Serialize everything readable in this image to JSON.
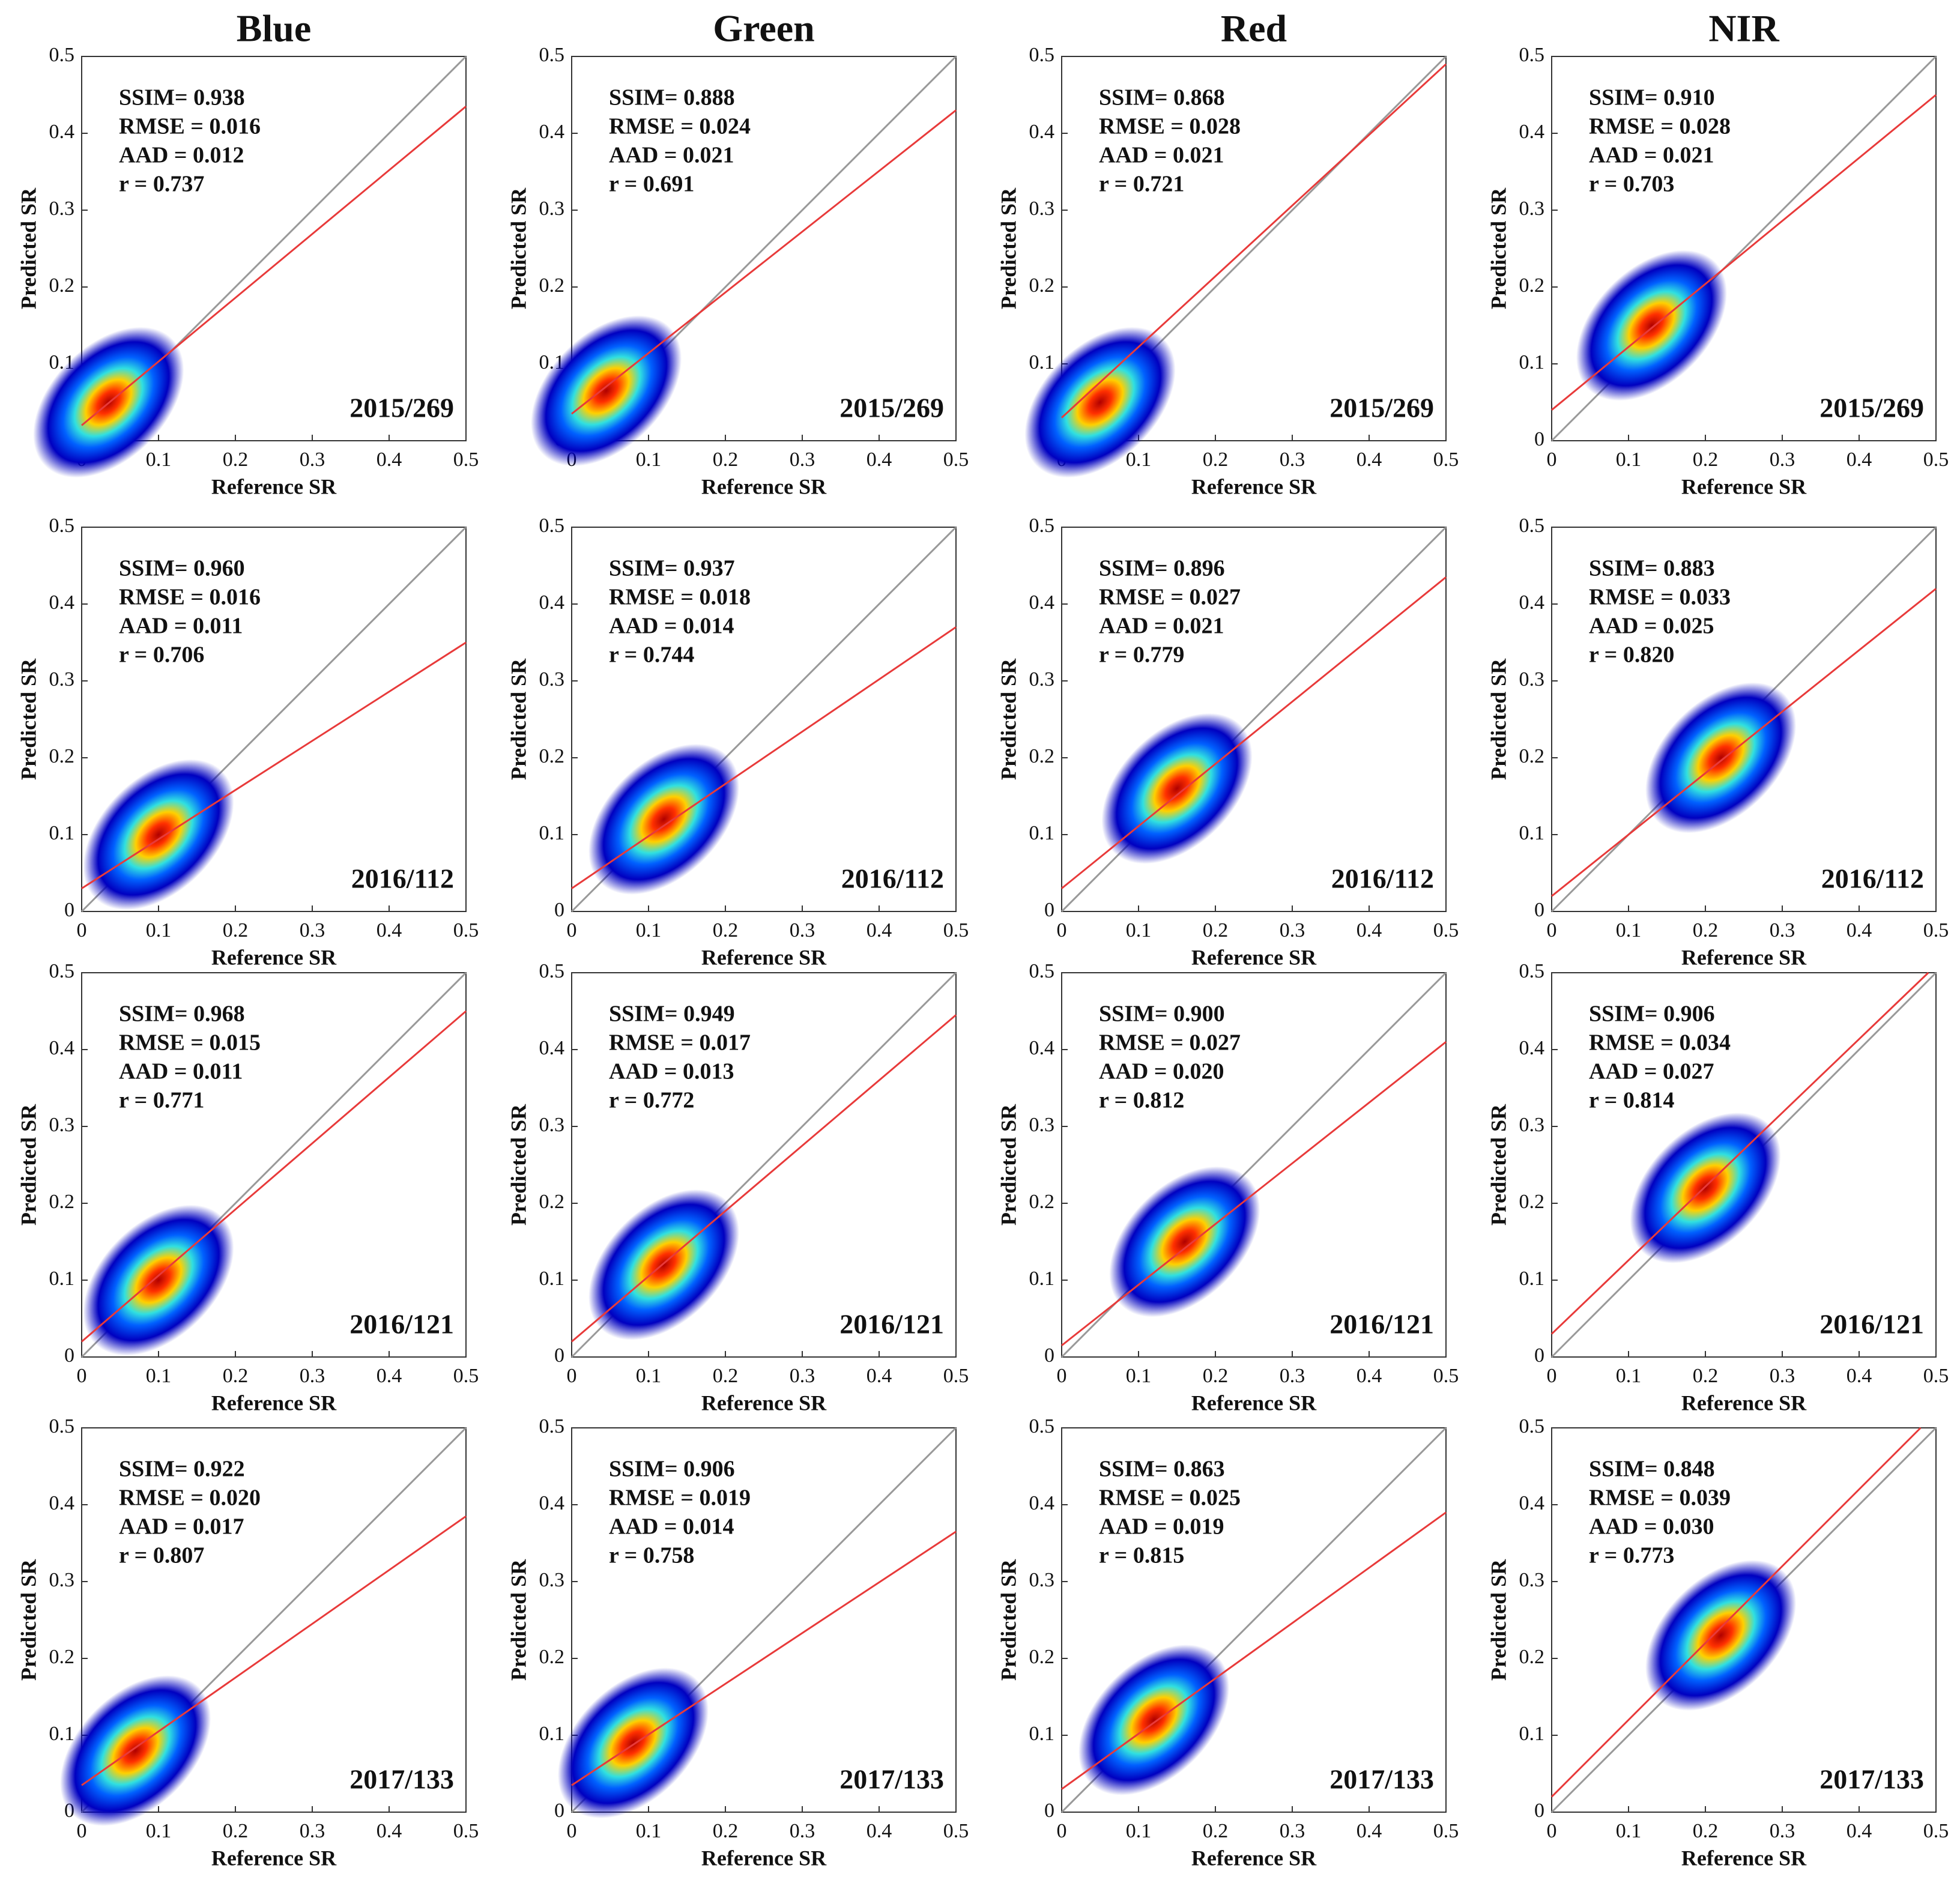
{
  "chart_data": [
    {
      "type": "scatter",
      "title": "Blue",
      "annotations": [
        "SSIM= 0.938",
        "RMSE = 0.016",
        "AAD = 0.012",
        "r =  0.737"
      ],
      "label": "2015/269",
      "xlabel": "Reference SR",
      "ylabel": "Predicted SR",
      "xlim": [
        0,
        0.5
      ],
      "ylim": [
        0,
        0.5
      ],
      "xticks": [
        0,
        0.1,
        0.2,
        0.3,
        0.4,
        0.5
      ],
      "yticks": [
        0,
        0.1,
        0.2,
        0.3,
        0.4,
        0.5
      ],
      "fit_line": {
        "color": "#e83a3a",
        "x": [
          0,
          0.5
        ],
        "y": [
          0.02,
          0.435
        ]
      },
      "peak": {
        "x": 0.035,
        "y": 0.05
      }
    },
    {
      "type": "scatter",
      "title": "Green",
      "annotations": [
        "SSIM= 0.888",
        "RMSE = 0.024",
        "AAD = 0.021",
        "r =  0.691"
      ],
      "label": "2015/269",
      "xlabel": "Reference SR",
      "ylabel": "Predicted SR",
      "xlim": [
        0,
        0.5
      ],
      "ylim": [
        0,
        0.5
      ],
      "xticks": [
        0,
        0.1,
        0.2,
        0.3,
        0.4,
        0.5
      ],
      "yticks": [
        0,
        0.1,
        0.2,
        0.3,
        0.4,
        0.5
      ],
      "fit_line": {
        "color": "#e83a3a",
        "x": [
          0,
          0.5
        ],
        "y": [
          0.035,
          0.43
        ]
      },
      "peak": {
        "x": 0.045,
        "y": 0.065
      }
    },
    {
      "type": "scatter",
      "title": "Red",
      "annotations": [
        "SSIM= 0.868",
        "RMSE = 0.028",
        "AAD = 0.021",
        "r =  0.721"
      ],
      "label": "2015/269",
      "xlabel": "Reference SR",
      "ylabel": "Predicted SR",
      "xlim": [
        0,
        0.5
      ],
      "ylim": [
        0,
        0.5
      ],
      "xticks": [
        0,
        0.1,
        0.2,
        0.3,
        0.4,
        0.5
      ],
      "yticks": [
        0,
        0.1,
        0.2,
        0.3,
        0.4,
        0.5
      ],
      "fit_line": {
        "color": "#e83a3a",
        "x": [
          0,
          0.5
        ],
        "y": [
          0.03,
          0.49
        ]
      },
      "peak": {
        "x": 0.05,
        "y": 0.05
      }
    },
    {
      "type": "scatter",
      "title": "NIR",
      "annotations": [
        "SSIM= 0.910",
        "RMSE = 0.028",
        "AAD = 0.021",
        "r =  0.703"
      ],
      "label": "2015/269",
      "xlabel": "Reference SR",
      "ylabel": "Predicted SR",
      "xlim": [
        0,
        0.5
      ],
      "ylim": [
        0,
        0.5
      ],
      "xticks": [
        0,
        0.1,
        0.2,
        0.3,
        0.4,
        0.5
      ],
      "yticks": [
        0,
        0.1,
        0.2,
        0.3,
        0.4,
        0.5
      ],
      "fit_line": {
        "color": "#e83a3a",
        "x": [
          0,
          0.5
        ],
        "y": [
          0.04,
          0.45
        ]
      },
      "peak": {
        "x": 0.13,
        "y": 0.15
      }
    },
    {
      "type": "scatter",
      "annotations": [
        "SSIM= 0.960",
        "RMSE = 0.016",
        "AAD = 0.011",
        "r =  0.706"
      ],
      "label": "2016/112",
      "xlabel": "Reference SR",
      "ylabel": "Predicted SR",
      "xlim": [
        0,
        0.5
      ],
      "ylim": [
        0,
        0.5
      ],
      "xticks": [
        0,
        0.1,
        0.2,
        0.3,
        0.4,
        0.5
      ],
      "yticks": [
        0,
        0.1,
        0.2,
        0.3,
        0.4,
        0.5
      ],
      "fit_line": {
        "color": "#e83a3a",
        "x": [
          0,
          0.5
        ],
        "y": [
          0.03,
          0.35
        ]
      },
      "peak": {
        "x": 0.1,
        "y": 0.1
      }
    },
    {
      "type": "scatter",
      "annotations": [
        "SSIM= 0.937",
        "RMSE = 0.018",
        "AAD = 0.014",
        "r =  0.744"
      ],
      "label": "2016/112",
      "xlabel": "Reference SR",
      "ylabel": "Predicted SR",
      "xlim": [
        0,
        0.5
      ],
      "ylim": [
        0,
        0.5
      ],
      "xticks": [
        0,
        0.1,
        0.2,
        0.3,
        0.4,
        0.5
      ],
      "yticks": [
        0,
        0.1,
        0.2,
        0.3,
        0.4,
        0.5
      ],
      "fit_line": {
        "color": "#e83a3a",
        "x": [
          0,
          0.5
        ],
        "y": [
          0.03,
          0.37
        ]
      },
      "peak": {
        "x": 0.12,
        "y": 0.12
      }
    },
    {
      "type": "scatter",
      "annotations": [
        "SSIM= 0.896",
        "RMSE = 0.027",
        "AAD = 0.021",
        "r =  0.779"
      ],
      "label": "2016/112",
      "xlabel": "Reference SR",
      "ylabel": "Predicted SR",
      "xlim": [
        0,
        0.5
      ],
      "ylim": [
        0,
        0.5
      ],
      "xticks": [
        0,
        0.1,
        0.2,
        0.3,
        0.4,
        0.5
      ],
      "yticks": [
        0,
        0.1,
        0.2,
        0.3,
        0.4,
        0.5
      ],
      "fit_line": {
        "color": "#e83a3a",
        "x": [
          0,
          0.5
        ],
        "y": [
          0.03,
          0.435
        ]
      },
      "peak": {
        "x": 0.15,
        "y": 0.16
      }
    },
    {
      "type": "scatter",
      "annotations": [
        "SSIM= 0.883",
        "RMSE = 0.033",
        "AAD = 0.025",
        "r =  0.820"
      ],
      "label": "2016/112",
      "xlabel": "Reference SR",
      "ylabel": "Predicted SR",
      "xlim": [
        0,
        0.5
      ],
      "ylim": [
        0,
        0.5
      ],
      "xticks": [
        0,
        0.1,
        0.2,
        0.3,
        0.4,
        0.5
      ],
      "yticks": [
        0,
        0.1,
        0.2,
        0.3,
        0.4,
        0.5
      ],
      "fit_line": {
        "color": "#e83a3a",
        "x": [
          0,
          0.5
        ],
        "y": [
          0.02,
          0.42
        ]
      },
      "peak": {
        "x": 0.22,
        "y": 0.2
      }
    },
    {
      "type": "scatter",
      "annotations": [
        "SSIM= 0.968",
        "RMSE = 0.015",
        "AAD = 0.011",
        "r =  0.771"
      ],
      "label": "2016/121",
      "xlabel": "Reference SR",
      "ylabel": "Predicted SR",
      "xlim": [
        0,
        0.5
      ],
      "ylim": [
        0,
        0.5
      ],
      "xticks": [
        0,
        0.1,
        0.2,
        0.3,
        0.4,
        0.5
      ],
      "yticks": [
        0,
        0.1,
        0.2,
        0.3,
        0.4,
        0.5
      ],
      "fit_line": {
        "color": "#e83a3a",
        "x": [
          0,
          0.5
        ],
        "y": [
          0.02,
          0.45
        ]
      },
      "peak": {
        "x": 0.1,
        "y": 0.1
      }
    },
    {
      "type": "scatter",
      "annotations": [
        "SSIM= 0.949",
        "RMSE = 0.017",
        "AAD = 0.013",
        "r =  0.772"
      ],
      "label": "2016/121",
      "xlabel": "Reference SR",
      "ylabel": "Predicted SR",
      "xlim": [
        0,
        0.5
      ],
      "ylim": [
        0,
        0.5
      ],
      "xticks": [
        0,
        0.1,
        0.2,
        0.3,
        0.4,
        0.5
      ],
      "yticks": [
        0,
        0.1,
        0.2,
        0.3,
        0.4,
        0.5
      ],
      "fit_line": {
        "color": "#e83a3a",
        "x": [
          0,
          0.5
        ],
        "y": [
          0.02,
          0.445
        ]
      },
      "peak": {
        "x": 0.12,
        "y": 0.12
      }
    },
    {
      "type": "scatter",
      "annotations": [
        "SSIM= 0.900",
        "RMSE = 0.027",
        "AAD = 0.020",
        "r =  0.812"
      ],
      "label": "2016/121",
      "xlabel": "Reference SR",
      "ylabel": "Predicted SR",
      "xlim": [
        0,
        0.5
      ],
      "ylim": [
        0,
        0.5
      ],
      "xticks": [
        0,
        0.1,
        0.2,
        0.3,
        0.4,
        0.5
      ],
      "yticks": [
        0,
        0.1,
        0.2,
        0.3,
        0.4,
        0.5
      ],
      "fit_line": {
        "color": "#e83a3a",
        "x": [
          0,
          0.5
        ],
        "y": [
          0.015,
          0.41
        ]
      },
      "peak": {
        "x": 0.16,
        "y": 0.15
      }
    },
    {
      "type": "scatter",
      "annotations": [
        "SSIM= 0.906",
        "RMSE = 0.034",
        "AAD = 0.027",
        "r =  0.814"
      ],
      "label": "2016/121",
      "xlabel": "Reference SR",
      "ylabel": "Predicted SR",
      "xlim": [
        0,
        0.5
      ],
      "ylim": [
        0,
        0.5
      ],
      "xticks": [
        0,
        0.1,
        0.2,
        0.3,
        0.4,
        0.5
      ],
      "yticks": [
        0,
        0.1,
        0.2,
        0.3,
        0.4,
        0.5
      ],
      "fit_line": {
        "color": "#e83a3a",
        "x": [
          0,
          0.49
        ],
        "y": [
          0.03,
          0.5
        ]
      },
      "peak": {
        "x": 0.2,
        "y": 0.22
      }
    },
    {
      "type": "scatter",
      "annotations": [
        "SSIM= 0.922",
        "RMSE = 0.020",
        "AAD = 0.017",
        "r =  0.807"
      ],
      "label": "2017/133",
      "xlabel": "Reference SR",
      "ylabel": "Predicted SR",
      "xlim": [
        0,
        0.5
      ],
      "ylim": [
        0,
        0.5
      ],
      "xticks": [
        0,
        0.1,
        0.2,
        0.3,
        0.4,
        0.5
      ],
      "yticks": [
        0,
        0.1,
        0.2,
        0.3,
        0.4,
        0.5
      ],
      "fit_line": {
        "color": "#e83a3a",
        "x": [
          0,
          0.5
        ],
        "y": [
          0.035,
          0.385
        ]
      },
      "peak": {
        "x": 0.07,
        "y": 0.08
      }
    },
    {
      "type": "scatter",
      "annotations": [
        "SSIM= 0.906",
        "RMSE = 0.019",
        "AAD = 0.014",
        "r =  0.758"
      ],
      "label": "2017/133",
      "xlabel": "Reference SR",
      "ylabel": "Predicted SR",
      "xlim": [
        0,
        0.5
      ],
      "ylim": [
        0,
        0.5
      ],
      "xticks": [
        0,
        0.1,
        0.2,
        0.3,
        0.4,
        0.5
      ],
      "yticks": [
        0,
        0.1,
        0.2,
        0.3,
        0.4,
        0.5
      ],
      "fit_line": {
        "color": "#e83a3a",
        "x": [
          0,
          0.5
        ],
        "y": [
          0.035,
          0.365
        ]
      },
      "peak": {
        "x": 0.08,
        "y": 0.09
      }
    },
    {
      "type": "scatter",
      "annotations": [
        "SSIM= 0.863",
        "RMSE = 0.025",
        "AAD = 0.019",
        "r =  0.815"
      ],
      "label": "2017/133",
      "xlabel": "Reference SR",
      "ylabel": "Predicted SR",
      "xlim": [
        0,
        0.5
      ],
      "ylim": [
        0,
        0.5
      ],
      "xticks": [
        0,
        0.1,
        0.2,
        0.3,
        0.4,
        0.5
      ],
      "yticks": [
        0,
        0.1,
        0.2,
        0.3,
        0.4,
        0.5
      ],
      "fit_line": {
        "color": "#e83a3a",
        "x": [
          0,
          0.5
        ],
        "y": [
          0.03,
          0.39
        ]
      },
      "peak": {
        "x": 0.12,
        "y": 0.12
      }
    },
    {
      "type": "scatter",
      "annotations": [
        "SSIM= 0.848",
        "RMSE = 0.039",
        "AAD = 0.030",
        "r =  0.773"
      ],
      "label": "2017/133",
      "xlabel": "Reference SR",
      "ylabel": "Predicted SR",
      "xlim": [
        0,
        0.5
      ],
      "ylim": [
        0,
        0.5
      ],
      "xticks": [
        0,
        0.1,
        0.2,
        0.3,
        0.4,
        0.5
      ],
      "yticks": [
        0,
        0.1,
        0.2,
        0.3,
        0.4,
        0.5
      ],
      "fit_line": {
        "color": "#e83a3a",
        "x": [
          0,
          0.48
        ],
        "y": [
          0.02,
          0.5
        ]
      },
      "peak": {
        "x": 0.22,
        "y": 0.23
      }
    }
  ]
}
